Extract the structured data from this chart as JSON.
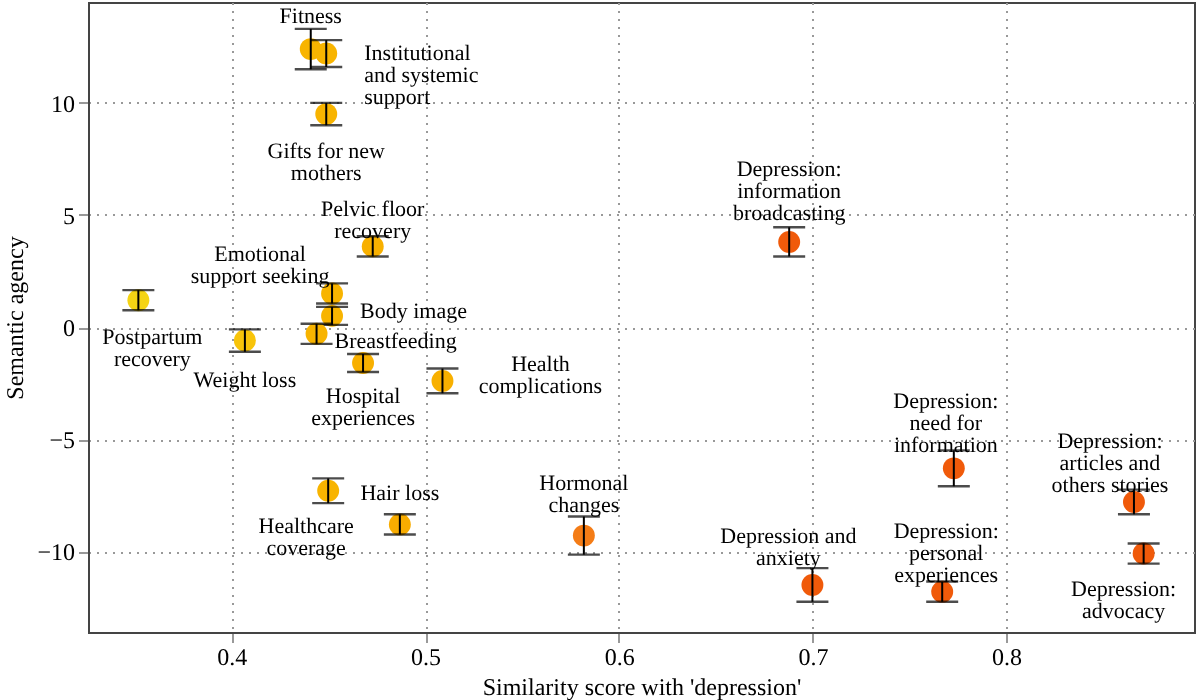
{
  "chart_data": {
    "type": "scatter",
    "xlabel": "Similarity score with 'depression'",
    "ylabel": "Semantic agency",
    "xlim": [
      0.326,
      0.897
    ],
    "ylim": [
      -13.6,
      14.5
    ],
    "xticks": [
      0.4,
      0.5,
      0.6,
      0.7,
      0.8
    ],
    "yticks": [
      -10,
      -5,
      0,
      5,
      10
    ],
    "grid": true,
    "marker": "circle",
    "series": [
      {
        "name": "Fitness",
        "color": "#f8b400",
        "x": [
          0.441
        ],
        "values": [
          12.4
        ],
        "errors": [
          0.9
        ]
      },
      {
        "name": "Institutional\nand systemic\nsupport",
        "color": "#f8b400",
        "x": [
          0.449
        ],
        "values": [
          12.2
        ],
        "errors": [
          0.6
        ]
      },
      {
        "name": "Gifts for new\nmothers",
        "color": "#f8b400",
        "x": [
          0.449
        ],
        "values": [
          9.5
        ],
        "errors": [
          0.5
        ]
      },
      {
        "name": "Pelvic floor\nrecovery",
        "color": "#f8b000",
        "x": [
          0.473
        ],
        "values": [
          3.6
        ],
        "errors": [
          0.45
        ]
      },
      {
        "name": "Emotional\nsupport seeking",
        "color": "#f8b400",
        "x": [
          0.452
        ],
        "values": [
          1.5
        ],
        "errors": [
          0.45
        ]
      },
      {
        "name": "Body image",
        "color": "#f8b400",
        "x": [
          0.452
        ],
        "values": [
          0.5
        ],
        "errors": [
          0.4
        ]
      },
      {
        "name": "Breastfeeding",
        "color": "#f8b400",
        "x": [
          0.444
        ],
        "values": [
          -0.3
        ],
        "errors": [
          0.45
        ]
      },
      {
        "name": "Postpartum\nrecovery",
        "color": "#f5d414",
        "x": [
          0.352
        ],
        "values": [
          1.2
        ],
        "errors": [
          0.45
        ]
      },
      {
        "name": "Weight loss",
        "color": "#f8c40a",
        "x": [
          0.407
        ],
        "values": [
          -0.6
        ],
        "errors": [
          0.5
        ]
      },
      {
        "name": "Hospital\nexperiences",
        "color": "#f8b000",
        "x": [
          0.468
        ],
        "values": [
          -1.6
        ],
        "errors": [
          0.4
        ]
      },
      {
        "name": "Health\ncomplications",
        "color": "#f8b000",
        "x": [
          0.509
        ],
        "values": [
          -2.4
        ],
        "errors": [
          0.55
        ]
      },
      {
        "name": "Healthcare\ncoverage",
        "color": "#f8b400",
        "x": [
          0.45
        ],
        "values": [
          -7.3
        ],
        "errors": [
          0.55
        ]
      },
      {
        "name": "Hair loss",
        "color": "#f8ac00",
        "x": [
          0.487
        ],
        "values": [
          -8.8
        ],
        "errors": [
          0.45
        ]
      },
      {
        "name": "Hormonal\nchanges",
        "color": "#f47c16",
        "x": [
          0.582
        ],
        "values": [
          -9.3
        ],
        "errors": [
          0.85
        ]
      },
      {
        "name": "Depression:\ninformation\nbroadcasting",
        "color": "#f05a0a",
        "x": [
          0.688
        ],
        "values": [
          3.8
        ],
        "errors": [
          0.65
        ]
      },
      {
        "name": "Depression and\nanxiety",
        "color": "#f05a0a",
        "x": [
          0.7
        ],
        "values": [
          -11.5
        ],
        "errors": [
          0.75
        ]
      },
      {
        "name": "Depression:\nneed for\ninformation",
        "color": "#f05a0a",
        "x": [
          0.773
        ],
        "values": [
          -6.3
        ],
        "errors": [
          0.8
        ]
      },
      {
        "name": "Depression:\npersonal\nexperiences",
        "color": "#f05a0a",
        "x": [
          0.767
        ],
        "values": [
          -11.8
        ],
        "errors": [
          0.45
        ]
      },
      {
        "name": "Depression:\narticles and\nothers stories",
        "color": "#f05a0a",
        "x": [
          0.866
        ],
        "values": [
          -7.8
        ],
        "errors": [
          0.55
        ]
      },
      {
        "name": "Depression:\nadvocacy",
        "color": "#f05a0a",
        "x": [
          0.871
        ],
        "values": [
          -10.1
        ],
        "errors": [
          0.45
        ]
      }
    ]
  }
}
